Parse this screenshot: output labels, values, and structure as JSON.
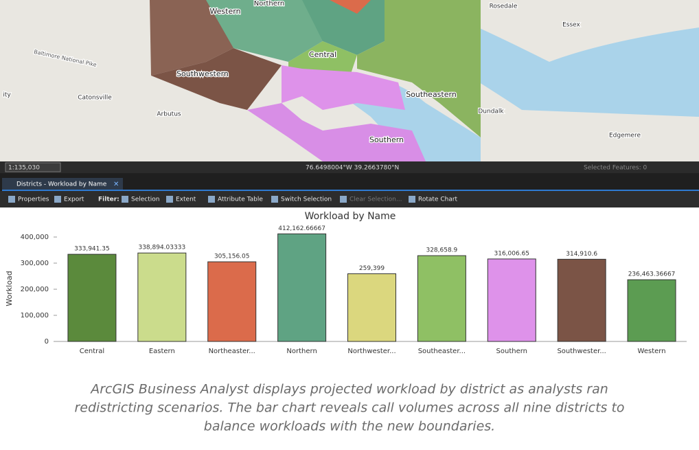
{
  "map": {
    "labels": [
      "Northern",
      "Western",
      "Central",
      "Southwestern",
      "Southeastern",
      "Southern",
      "Rosedale",
      "Essex",
      "Catonsville",
      "Arbutus",
      "Dundalk",
      "Edgemere",
      "Baltimore National Pike",
      "ity"
    ]
  },
  "status_bar": {
    "scale": "1:135,030",
    "coordinates": "76.6498004°W 39.2663780°N",
    "selected": "Selected Features: 0"
  },
  "tab": {
    "title": "Districts - Workload by Name"
  },
  "toolbar": {
    "items": [
      "Properties",
      "Export",
      "Filter:",
      "Selection",
      "Extent",
      "Attribute Table",
      "Switch Selection",
      "Clear Selection...",
      "Rotate Chart"
    ]
  },
  "chart": {
    "type": "bar",
    "title": "Workload by Name",
    "y_label": "Workload",
    "categories": [
      "Central",
      "Eastern",
      "Northeaster...",
      "Northern",
      "Northwester...",
      "Southeaster...",
      "Southern",
      "Southwester...",
      "Western"
    ],
    "values": [
      333941.35,
      338894.03333,
      305156.05,
      412162.66667,
      259399,
      328658.9,
      316006.65,
      314910.6,
      236463.36667
    ],
    "value_labels": [
      "333,941.35",
      "338,894.03333",
      "305,156.05",
      "412,162.66667",
      "259,399",
      "328,658.9",
      "316,006.65",
      "314,910.6",
      "236,463.36667"
    ],
    "colors": [
      "#5b8a3c",
      "#cbdc8c",
      "#db6b4b",
      "#5fa383",
      "#dbd77e",
      "#8fc064",
      "#de92ea",
      "#7b5446",
      "#5c9c52"
    ],
    "ylim": [
      0,
      450000
    ],
    "yticks": [
      0,
      {
        "value": 100000,
        "label": "100,000"
      },
      {
        "value": 200000,
        "label": "200,000"
      },
      {
        "value": 300000,
        "label": "300,000"
      },
      {
        "value": 400000,
        "label": "400,000"
      }
    ]
  },
  "caption": {
    "lines": [
      "ArcGIS Business Analyst displays projected workload by district as analysts ran",
      "redistricting scenarios. The bar chart reveals call volumes across all nine districts to",
      "balance workloads with the new boundaries."
    ]
  }
}
